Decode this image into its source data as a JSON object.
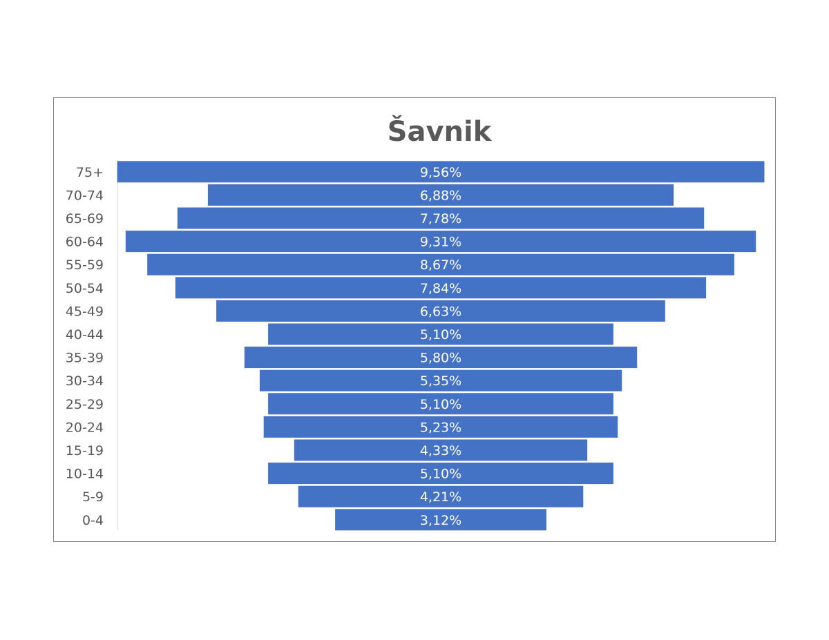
{
  "chart_data": {
    "type": "bar",
    "orientation": "horizontal-centered",
    "title": "Šavnik",
    "categories": [
      "75+",
      "70-74",
      "65-69",
      "60-64",
      "55-59",
      "50-54",
      "45-49",
      "40-44",
      "35-39",
      "30-34",
      "25-29",
      "20-24",
      "15-19",
      "10-14",
      "5-9",
      "0-4"
    ],
    "values": [
      9.56,
      6.88,
      7.78,
      9.31,
      8.67,
      7.84,
      6.63,
      5.1,
      5.8,
      5.35,
      5.1,
      5.23,
      4.33,
      5.1,
      4.21,
      3.12
    ],
    "value_labels": [
      "9,56%",
      "6,88%",
      "7,78%",
      "9,31%",
      "8,67%",
      "7,84%",
      "6,63%",
      "5,10%",
      "5,80%",
      "5,35%",
      "5,10%",
      "5,23%",
      "4,33%",
      "5,10%",
      "4,21%",
      "3,12%"
    ],
    "xlabel": "",
    "ylabel": "",
    "legend": "none",
    "grid": false,
    "bar_color": "#4472c4",
    "label_color": "#ffffff",
    "text_color": "#595959"
  }
}
